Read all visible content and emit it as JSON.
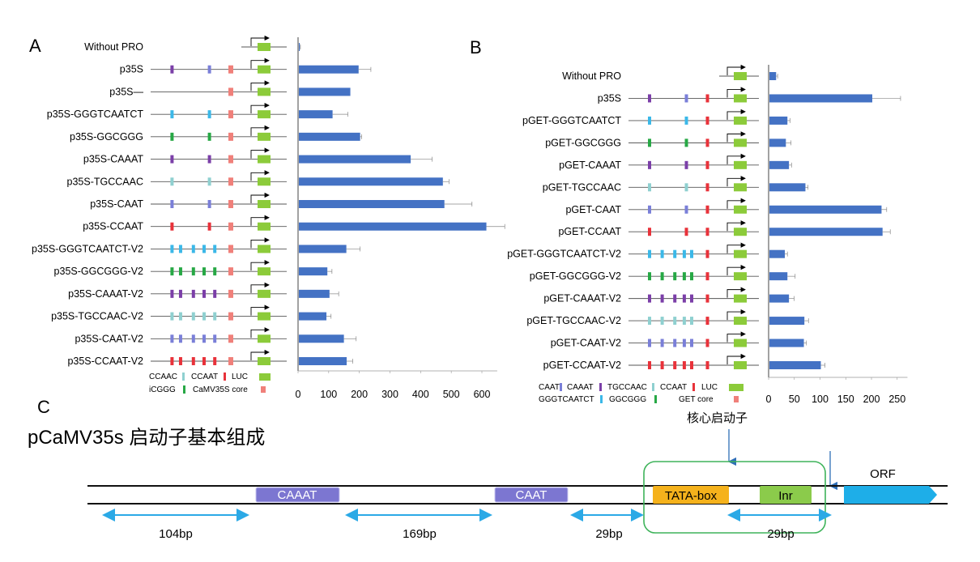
{
  "panel_labels": {
    "a": "A",
    "b": "B",
    "c": "C"
  },
  "colors": {
    "bar": "#4472C4",
    "CCAAC": "#8FD0D0",
    "CCAAT": "#E8323A",
    "LUC": "#8CCB3A",
    "CAAT": "#7A7FD8",
    "CAAAT": "#7B3FA8",
    "TGCCAAC": "#8FD0D0",
    "GGCGGG": "#27A845",
    "GGGTCAATCT": "#3BB8E8",
    "core": "#F0807A",
    "diagram_caaat": "#7C76D1",
    "diagram_tata": "#F5B21C",
    "diagram_inr": "#8BCB4B",
    "diagram_orf": "#1EAEE8",
    "diagram_arrow": "#2BA9E6",
    "diagram_box": "#3EB35A"
  },
  "chart_data": [
    {
      "type": "bar",
      "orientation": "horizontal",
      "panel": "A",
      "categories": [
        "Without PRO",
        "p35S",
        "p35S—",
        "p35S-GGGTCAATCT",
        "p35S-GGCGGG",
        "p35S-CAAAT",
        "p35S-TGCCAAC",
        "p35S-CAAT",
        "p35S-CCAAT",
        "p35S-GGGTCAATCT-V2",
        "p35S-GGCGGG-V2",
        "p35S-CAAAT-V2",
        "p35S-TGCCAAC-V2",
        "p35S-CAAT-V2",
        "p35S-CCAAT-V2"
      ],
      "values": [
        3,
        195,
        168,
        110,
        200,
        365,
        470,
        475,
        612,
        155,
        93,
        100,
        90,
        147,
        156
      ],
      "errors": [
        2,
        40,
        0,
        50,
        5,
        70,
        20,
        90,
        60,
        45,
        15,
        30,
        15,
        40,
        20
      ],
      "xticks": [
        "0",
        "100",
        "200",
        "300",
        "400",
        "500",
        "600"
      ],
      "xlim": [
        0,
        650
      ],
      "elements": [
        [],
        [
          {
            "c": "CAAAT",
            "p": 0.2
          },
          {
            "c": "CAAT",
            "p": 0.55
          },
          {
            "c": "core",
            "p": 0.75
          }
        ],
        [
          {
            "c": "core",
            "p": 0.75
          }
        ],
        [
          {
            "c": "GGGTCAATCT",
            "p": 0.2
          },
          {
            "c": "GGGTCAATCT",
            "p": 0.55
          },
          {
            "c": "core",
            "p": 0.75
          }
        ],
        [
          {
            "c": "GGCGGG",
            "p": 0.2
          },
          {
            "c": "GGCGGG",
            "p": 0.55
          },
          {
            "c": "core",
            "p": 0.75
          }
        ],
        [
          {
            "c": "CAAAT",
            "p": 0.2
          },
          {
            "c": "CAAAT",
            "p": 0.55
          },
          {
            "c": "core",
            "p": 0.75
          }
        ],
        [
          {
            "c": "TGCCAAC",
            "p": 0.2
          },
          {
            "c": "TGCCAAC",
            "p": 0.55
          },
          {
            "c": "core",
            "p": 0.75
          }
        ],
        [
          {
            "c": "CAAT",
            "p": 0.2
          },
          {
            "c": "CAAT",
            "p": 0.55
          },
          {
            "c": "core",
            "p": 0.75
          }
        ],
        [
          {
            "c": "CCAAT",
            "p": 0.2
          },
          {
            "c": "CCAAT",
            "p": 0.55
          },
          {
            "c": "core",
            "p": 0.75
          }
        ],
        [
          {
            "c": "GGGTCAATCT",
            "p": 0.2
          },
          {
            "c": "GGGTCAATCT",
            "p": 0.28
          },
          {
            "c": "GGGTCAATCT",
            "p": 0.4
          },
          {
            "c": "GGGTCAATCT",
            "p": 0.5
          },
          {
            "c": "GGGTCAATCT",
            "p": 0.6
          },
          {
            "c": "core",
            "p": 0.75
          }
        ],
        [
          {
            "c": "GGCGGG",
            "p": 0.2
          },
          {
            "c": "GGCGGG",
            "p": 0.28
          },
          {
            "c": "GGCGGG",
            "p": 0.4
          },
          {
            "c": "GGCGGG",
            "p": 0.5
          },
          {
            "c": "GGCGGG",
            "p": 0.6
          },
          {
            "c": "core",
            "p": 0.75
          }
        ],
        [
          {
            "c": "CAAAT",
            "p": 0.2
          },
          {
            "c": "CAAAT",
            "p": 0.28
          },
          {
            "c": "CAAAT",
            "p": 0.4
          },
          {
            "c": "CAAAT",
            "p": 0.5
          },
          {
            "c": "CAAAT",
            "p": 0.6
          },
          {
            "c": "core",
            "p": 0.75
          }
        ],
        [
          {
            "c": "TGCCAAC",
            "p": 0.2
          },
          {
            "c": "TGCCAAC",
            "p": 0.28
          },
          {
            "c": "TGCCAAC",
            "p": 0.4
          },
          {
            "c": "TGCCAAC",
            "p": 0.5
          },
          {
            "c": "TGCCAAC",
            "p": 0.6
          },
          {
            "c": "core",
            "p": 0.75
          }
        ],
        [
          {
            "c": "CAAT",
            "p": 0.2
          },
          {
            "c": "CAAT",
            "p": 0.28
          },
          {
            "c": "CAAT",
            "p": 0.4
          },
          {
            "c": "CAAT",
            "p": 0.5
          },
          {
            "c": "CAAT",
            "p": 0.6
          },
          {
            "c": "core",
            "p": 0.75
          }
        ],
        [
          {
            "c": "CCAAT",
            "p": 0.2
          },
          {
            "c": "CCAAT",
            "p": 0.28
          },
          {
            "c": "CCAAT",
            "p": 0.4
          },
          {
            "c": "CCAAT",
            "p": 0.5
          },
          {
            "c": "CCAAT",
            "p": 0.6
          },
          {
            "c": "core",
            "p": 0.75
          }
        ]
      ],
      "legend": [
        {
          "label": "CCAAC",
          "color": "TGCCAAC"
        },
        {
          "label": "CCAAT",
          "color": "CCAAT"
        },
        {
          "label": "LUC",
          "color": "LUC"
        },
        {
          "label": "iCGGG",
          "color": "GGCGGG"
        },
        {
          "label": "CaMV35S core",
          "color": "core"
        }
      ]
    },
    {
      "type": "bar",
      "orientation": "horizontal",
      "panel": "B",
      "categories": [
        "Without PRO",
        "p35S",
        "pGET-GGGTCAATCT",
        "pGET-GGCGGG",
        "pGET-CAAAT",
        "pGET-TGCCAAC",
        "pGET-CAAT",
        "pGET-CCAAT",
        "pGET-GGGTCAATCT-V2",
        "pGET-GGCGGG-V2",
        "pGET-CAAAT-V2",
        "pGET-TGCCAAC-V2",
        "pGET-CAAT-V2",
        "pGET-CCAAT-V2"
      ],
      "values": [
        13,
        200,
        35,
        32,
        38,
        70,
        218,
        220,
        30,
        35,
        38,
        68,
        67,
        100
      ],
      "errors": [
        3,
        55,
        5,
        10,
        5,
        5,
        10,
        15,
        5,
        15,
        10,
        8,
        5,
        8
      ],
      "xticks": [
        "0",
        "50",
        "100",
        "150",
        "200",
        "250"
      ],
      "xlim": [
        0,
        270
      ],
      "elements": [
        [],
        [
          {
            "c": "CAAAT",
            "p": 0.2
          },
          {
            "c": "CAAT",
            "p": 0.55
          },
          {
            "c": "CCAAT",
            "p": 0.75
          }
        ],
        [
          {
            "c": "GGGTCAATCT",
            "p": 0.2
          },
          {
            "c": "GGGTCAATCT",
            "p": 0.55
          },
          {
            "c": "CCAAT",
            "p": 0.75
          }
        ],
        [
          {
            "c": "GGCGGG",
            "p": 0.2
          },
          {
            "c": "GGCGGG",
            "p": 0.55
          },
          {
            "c": "CCAAT",
            "p": 0.75
          }
        ],
        [
          {
            "c": "CAAAT",
            "p": 0.2
          },
          {
            "c": "CAAAT",
            "p": 0.55
          },
          {
            "c": "CCAAT",
            "p": 0.75
          }
        ],
        [
          {
            "c": "TGCCAAC",
            "p": 0.2
          },
          {
            "c": "TGCCAAC",
            "p": 0.55
          },
          {
            "c": "CCAAT",
            "p": 0.75
          }
        ],
        [
          {
            "c": "CAAT",
            "p": 0.2
          },
          {
            "c": "CAAT",
            "p": 0.55
          },
          {
            "c": "CCAAT",
            "p": 0.75
          }
        ],
        [
          {
            "c": "CCAAT",
            "p": 0.2
          },
          {
            "c": "CCAAT",
            "p": 0.55
          },
          {
            "c": "CCAAT",
            "p": 0.75
          }
        ],
        [
          {
            "c": "GGGTCAATCT",
            "p": 0.2
          },
          {
            "c": "GGGTCAATCT",
            "p": 0.32
          },
          {
            "c": "GGGTCAATCT",
            "p": 0.44
          },
          {
            "c": "GGGTCAATCT",
            "p": 0.53
          },
          {
            "c": "GGGTCAATCT",
            "p": 0.6
          },
          {
            "c": "CCAAT",
            "p": 0.75
          }
        ],
        [
          {
            "c": "GGCGGG",
            "p": 0.2
          },
          {
            "c": "GGCGGG",
            "p": 0.32
          },
          {
            "c": "GGCGGG",
            "p": 0.44
          },
          {
            "c": "GGCGGG",
            "p": 0.53
          },
          {
            "c": "GGCGGG",
            "p": 0.6
          },
          {
            "c": "CCAAT",
            "p": 0.75
          }
        ],
        [
          {
            "c": "CAAAT",
            "p": 0.2
          },
          {
            "c": "CAAAT",
            "p": 0.32
          },
          {
            "c": "CAAAT",
            "p": 0.44
          },
          {
            "c": "CAAAT",
            "p": 0.53
          },
          {
            "c": "CAAAT",
            "p": 0.6
          },
          {
            "c": "CCAAT",
            "p": 0.75
          }
        ],
        [
          {
            "c": "TGCCAAC",
            "p": 0.2
          },
          {
            "c": "TGCCAAC",
            "p": 0.32
          },
          {
            "c": "TGCCAAC",
            "p": 0.44
          },
          {
            "c": "TGCCAAC",
            "p": 0.53
          },
          {
            "c": "TGCCAAC",
            "p": 0.6
          },
          {
            "c": "CCAAT",
            "p": 0.75
          }
        ],
        [
          {
            "c": "CAAT",
            "p": 0.2
          },
          {
            "c": "CAAT",
            "p": 0.32
          },
          {
            "c": "CAAT",
            "p": 0.44
          },
          {
            "c": "CAAT",
            "p": 0.53
          },
          {
            "c": "CAAT",
            "p": 0.6
          },
          {
            "c": "CCAAT",
            "p": 0.75
          }
        ],
        [
          {
            "c": "CCAAT",
            "p": 0.2
          },
          {
            "c": "CCAAT",
            "p": 0.32
          },
          {
            "c": "CCAAT",
            "p": 0.44
          },
          {
            "c": "CCAAT",
            "p": 0.53
          },
          {
            "c": "CCAAT",
            "p": 0.6
          },
          {
            "c": "CCAAT",
            "p": 0.75
          }
        ]
      ],
      "legend": [
        {
          "label": "CAAT",
          "color": "CAAT"
        },
        {
          "label": "CAAAT",
          "color": "CAAAT"
        },
        {
          "label": "TGCCAAC",
          "color": "TGCCAAC"
        },
        {
          "label": "CCAAT",
          "color": "CCAAT"
        },
        {
          "label": "LUC",
          "color": "LUC"
        },
        {
          "label": "GGGTCAATCT",
          "color": "GGGTCAATCT"
        },
        {
          "label": "GGCGGG",
          "color": "GGCGGG"
        },
        {
          "label": "GET core",
          "color": "core"
        }
      ]
    }
  ],
  "diagram": {
    "title": "pCaMV35s 启动子基本组成",
    "core_label": "核心启动子",
    "caaat": "CAAAT",
    "caat": "CAAT",
    "tata": "TATA-box",
    "inr": "Inr",
    "orf": "ORF",
    "spacings": [
      "104bp",
      "169bp",
      "29bp",
      "29bp"
    ]
  }
}
